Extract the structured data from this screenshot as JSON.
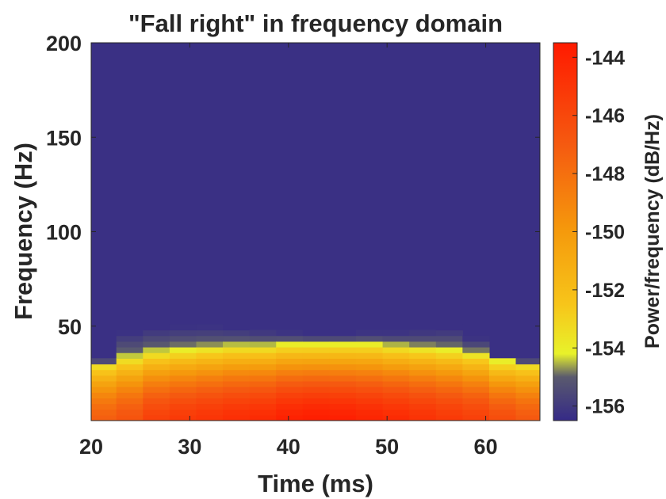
{
  "chart_data": {
    "type": "heatmap",
    "title": "\"Fall right\" in frequency domain",
    "xlabel": "Time (ms)",
    "ylabel": "Frequency (Hz)",
    "colorbar_label": "Power/frequency (dB/Hz)",
    "xlim": [
      20,
      65.5
    ],
    "ylim": [
      0,
      200
    ],
    "xticks": [
      20,
      30,
      40,
      50,
      60
    ],
    "yticks": [
      50,
      100,
      150,
      200
    ],
    "colorbar_range": [
      -156.5,
      -143.5
    ],
    "colorbar_ticks": [
      -144,
      -146,
      -148,
      -150,
      -152,
      -154,
      -156
    ],
    "time_bins_ms": [
      21.2,
      23.9,
      26.6,
      29.3,
      32.0,
      34.7,
      37.4,
      40.1,
      42.8,
      45.5,
      48.2,
      50.9,
      53.6,
      56.3,
      59.0,
      61.7,
      64.4
    ],
    "frequency_bin_hz": 3.0,
    "column_peak_db": [
      -147.2,
      -146.6,
      -145.6,
      -145.2,
      -144.9,
      -144.6,
      -144.4,
      -143.9,
      -143.7,
      -143.8,
      -144.1,
      -144.4,
      -144.8,
      -145.2,
      -145.6,
      -146.3,
      -146.9
    ],
    "column_band_edge_hz": [
      31,
      34,
      37,
      38,
      39,
      40,
      40,
      41,
      41,
      41,
      41,
      40,
      39,
      38,
      36,
      32,
      31
    ],
    "column_haze_top_hz": [
      31,
      47,
      49,
      50,
      50,
      49,
      48,
      47,
      46,
      46,
      47,
      47,
      48,
      49,
      44,
      33,
      31
    ],
    "background_db": -156.3,
    "colormap_stops": [
      {
        "db": -156.5,
        "color": "#352a87"
      },
      {
        "db": -155.0,
        "color": "#5a5a6e"
      },
      {
        "db": -154.2,
        "color": "#e8f22a"
      },
      {
        "db": -152.5,
        "color": "#f7c51a"
      },
      {
        "db": -150.0,
        "color": "#f59a0c"
      },
      {
        "db": -147.0,
        "color": "#f55a10"
      },
      {
        "db": -143.5,
        "color": "#ff1a00"
      }
    ]
  }
}
